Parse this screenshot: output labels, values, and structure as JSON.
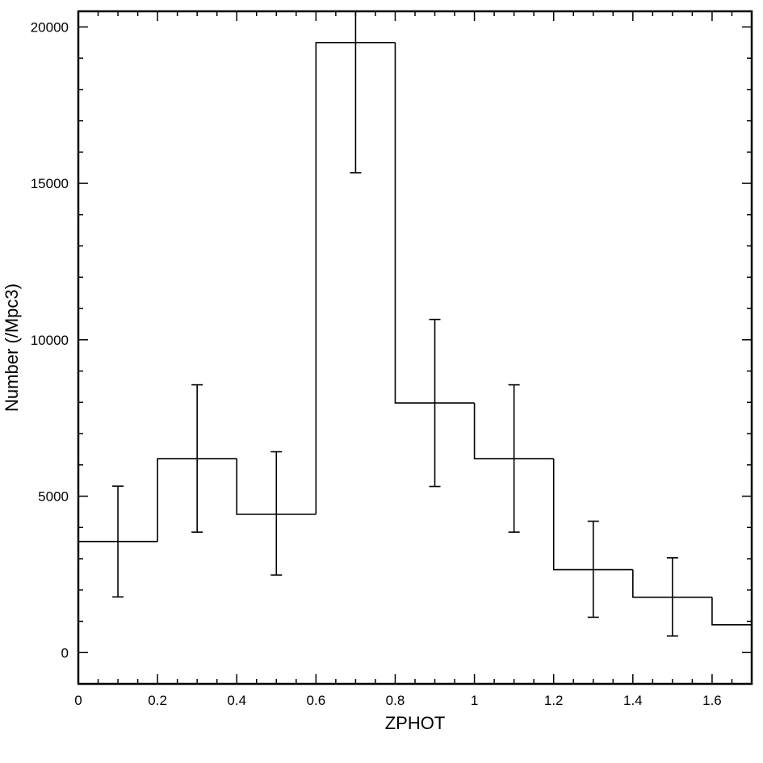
{
  "chart_data": {
    "type": "histogram",
    "xlabel": "ZPHOT",
    "ylabel": "Number (/Mpc3)",
    "xlim": [
      0,
      1.7
    ],
    "ylim": [
      -1000,
      20500
    ],
    "x_ticks": [
      0,
      0.2,
      0.4,
      0.6,
      0.8,
      1,
      1.2,
      1.4,
      1.6
    ],
    "x_tick_labels": [
      "0",
      "0.2",
      "0.4",
      "0.6",
      "0.8",
      "1",
      "1.2",
      "1.4",
      "1.6"
    ],
    "y_ticks": [
      0,
      5000,
      10000,
      15000,
      20000
    ],
    "y_tick_labels": [
      "0",
      "5000",
      "10000",
      "15000",
      "20000"
    ],
    "bin_edges": [
      0,
      0.2,
      0.4,
      0.6,
      0.8,
      1.0,
      1.2,
      1.4,
      1.6,
      1.8
    ],
    "bin_centers": [
      0.1,
      0.3,
      0.5,
      0.7,
      0.9,
      1.1,
      1.3,
      1.5,
      1.7
    ],
    "values": [
      3550,
      6200,
      4420,
      19500,
      7980,
      6200,
      2650,
      1770,
      890
    ],
    "err_low": [
      1780,
      3850,
      2480,
      15340,
      5310,
      3850,
      1130,
      530,
      null
    ],
    "err_high": [
      5320,
      8560,
      6420,
      20900,
      10650,
      8560,
      4200,
      3030,
      null
    ],
    "grid": false
  }
}
